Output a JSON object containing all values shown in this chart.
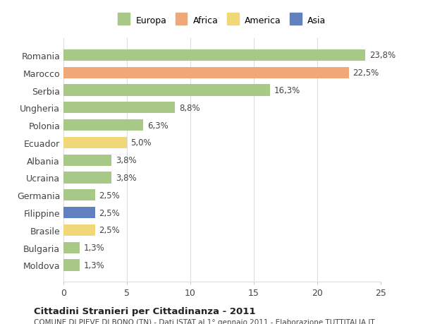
{
  "categories": [
    "Romania",
    "Marocco",
    "Serbia",
    "Ungheria",
    "Polonia",
    "Ecuador",
    "Albania",
    "Ucraina",
    "Germania",
    "Filippine",
    "Brasile",
    "Bulgaria",
    "Moldova"
  ],
  "values": [
    23.8,
    22.5,
    16.3,
    8.8,
    6.3,
    5.0,
    3.8,
    3.8,
    2.5,
    2.5,
    2.5,
    1.3,
    1.3
  ],
  "labels": [
    "23,8%",
    "22,5%",
    "16,3%",
    "8,8%",
    "6,3%",
    "5,0%",
    "3,8%",
    "3,8%",
    "2,5%",
    "2,5%",
    "2,5%",
    "1,3%",
    "1,3%"
  ],
  "colors": [
    "#a8c888",
    "#f0a878",
    "#a8c888",
    "#a8c888",
    "#a8c888",
    "#f0d878",
    "#a8c888",
    "#a8c888",
    "#a8c888",
    "#6080c0",
    "#f0d878",
    "#a8c888",
    "#a8c888"
  ],
  "continent": [
    "Europa",
    "Africa",
    "Europa",
    "Europa",
    "Europa",
    "America",
    "Europa",
    "Europa",
    "Europa",
    "Asia",
    "America",
    "Europa",
    "Europa"
  ],
  "legend_labels": [
    "Europa",
    "Africa",
    "America",
    "Asia"
  ],
  "legend_colors": [
    "#a8c888",
    "#f0a878",
    "#f0d878",
    "#6080c0"
  ],
  "title": "Cittadini Stranieri per Cittadinanza - 2011",
  "subtitle": "COMUNE DI PIEVE DI BONO (TN) - Dati ISTAT al 1° gennaio 2011 - Elaborazione TUTTITALIA.IT",
  "xlim": [
    0,
    25
  ],
  "xticks": [
    0,
    5,
    10,
    15,
    20,
    25
  ],
  "background_color": "#ffffff",
  "grid_color": "#dddddd"
}
